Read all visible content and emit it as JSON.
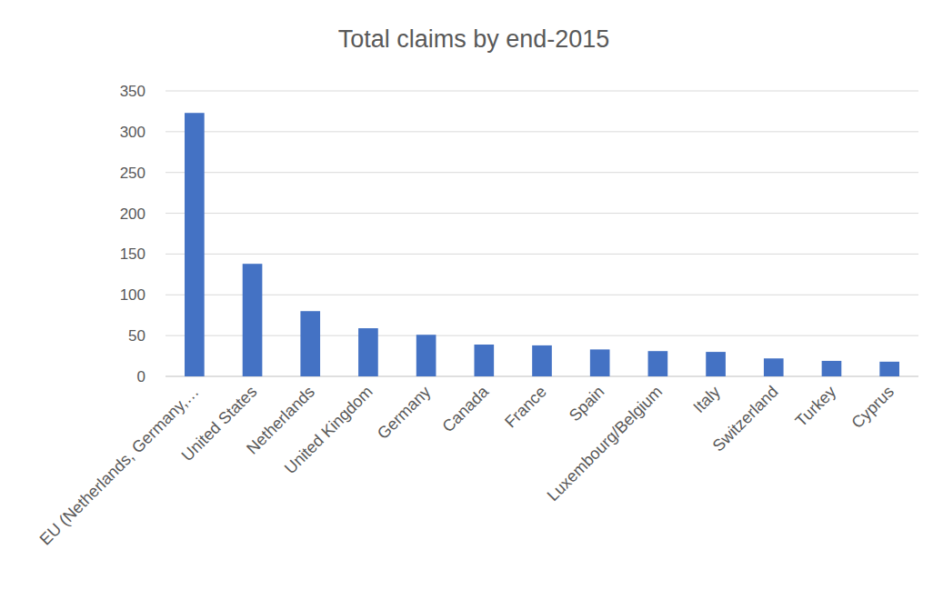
{
  "chart_data": {
    "type": "bar",
    "title": "Total claims by end-2015",
    "categories": [
      "EU (Netherlands, Germany,…",
      "United States",
      "Netherlands",
      "United Kingdom",
      "Germany",
      "Canada",
      "France",
      "Spain",
      "Luxembourg/Belgium",
      "Italy",
      "Switzerland",
      "Turkey",
      "Cyprus"
    ],
    "values": [
      323,
      138,
      80,
      59,
      51,
      39,
      38,
      33,
      31,
      30,
      22,
      19,
      18
    ],
    "color": "#4472c4",
    "ylim": [
      0,
      350
    ],
    "yticks": [
      0,
      50,
      100,
      150,
      200,
      250,
      300,
      350
    ],
    "grid": true
  }
}
